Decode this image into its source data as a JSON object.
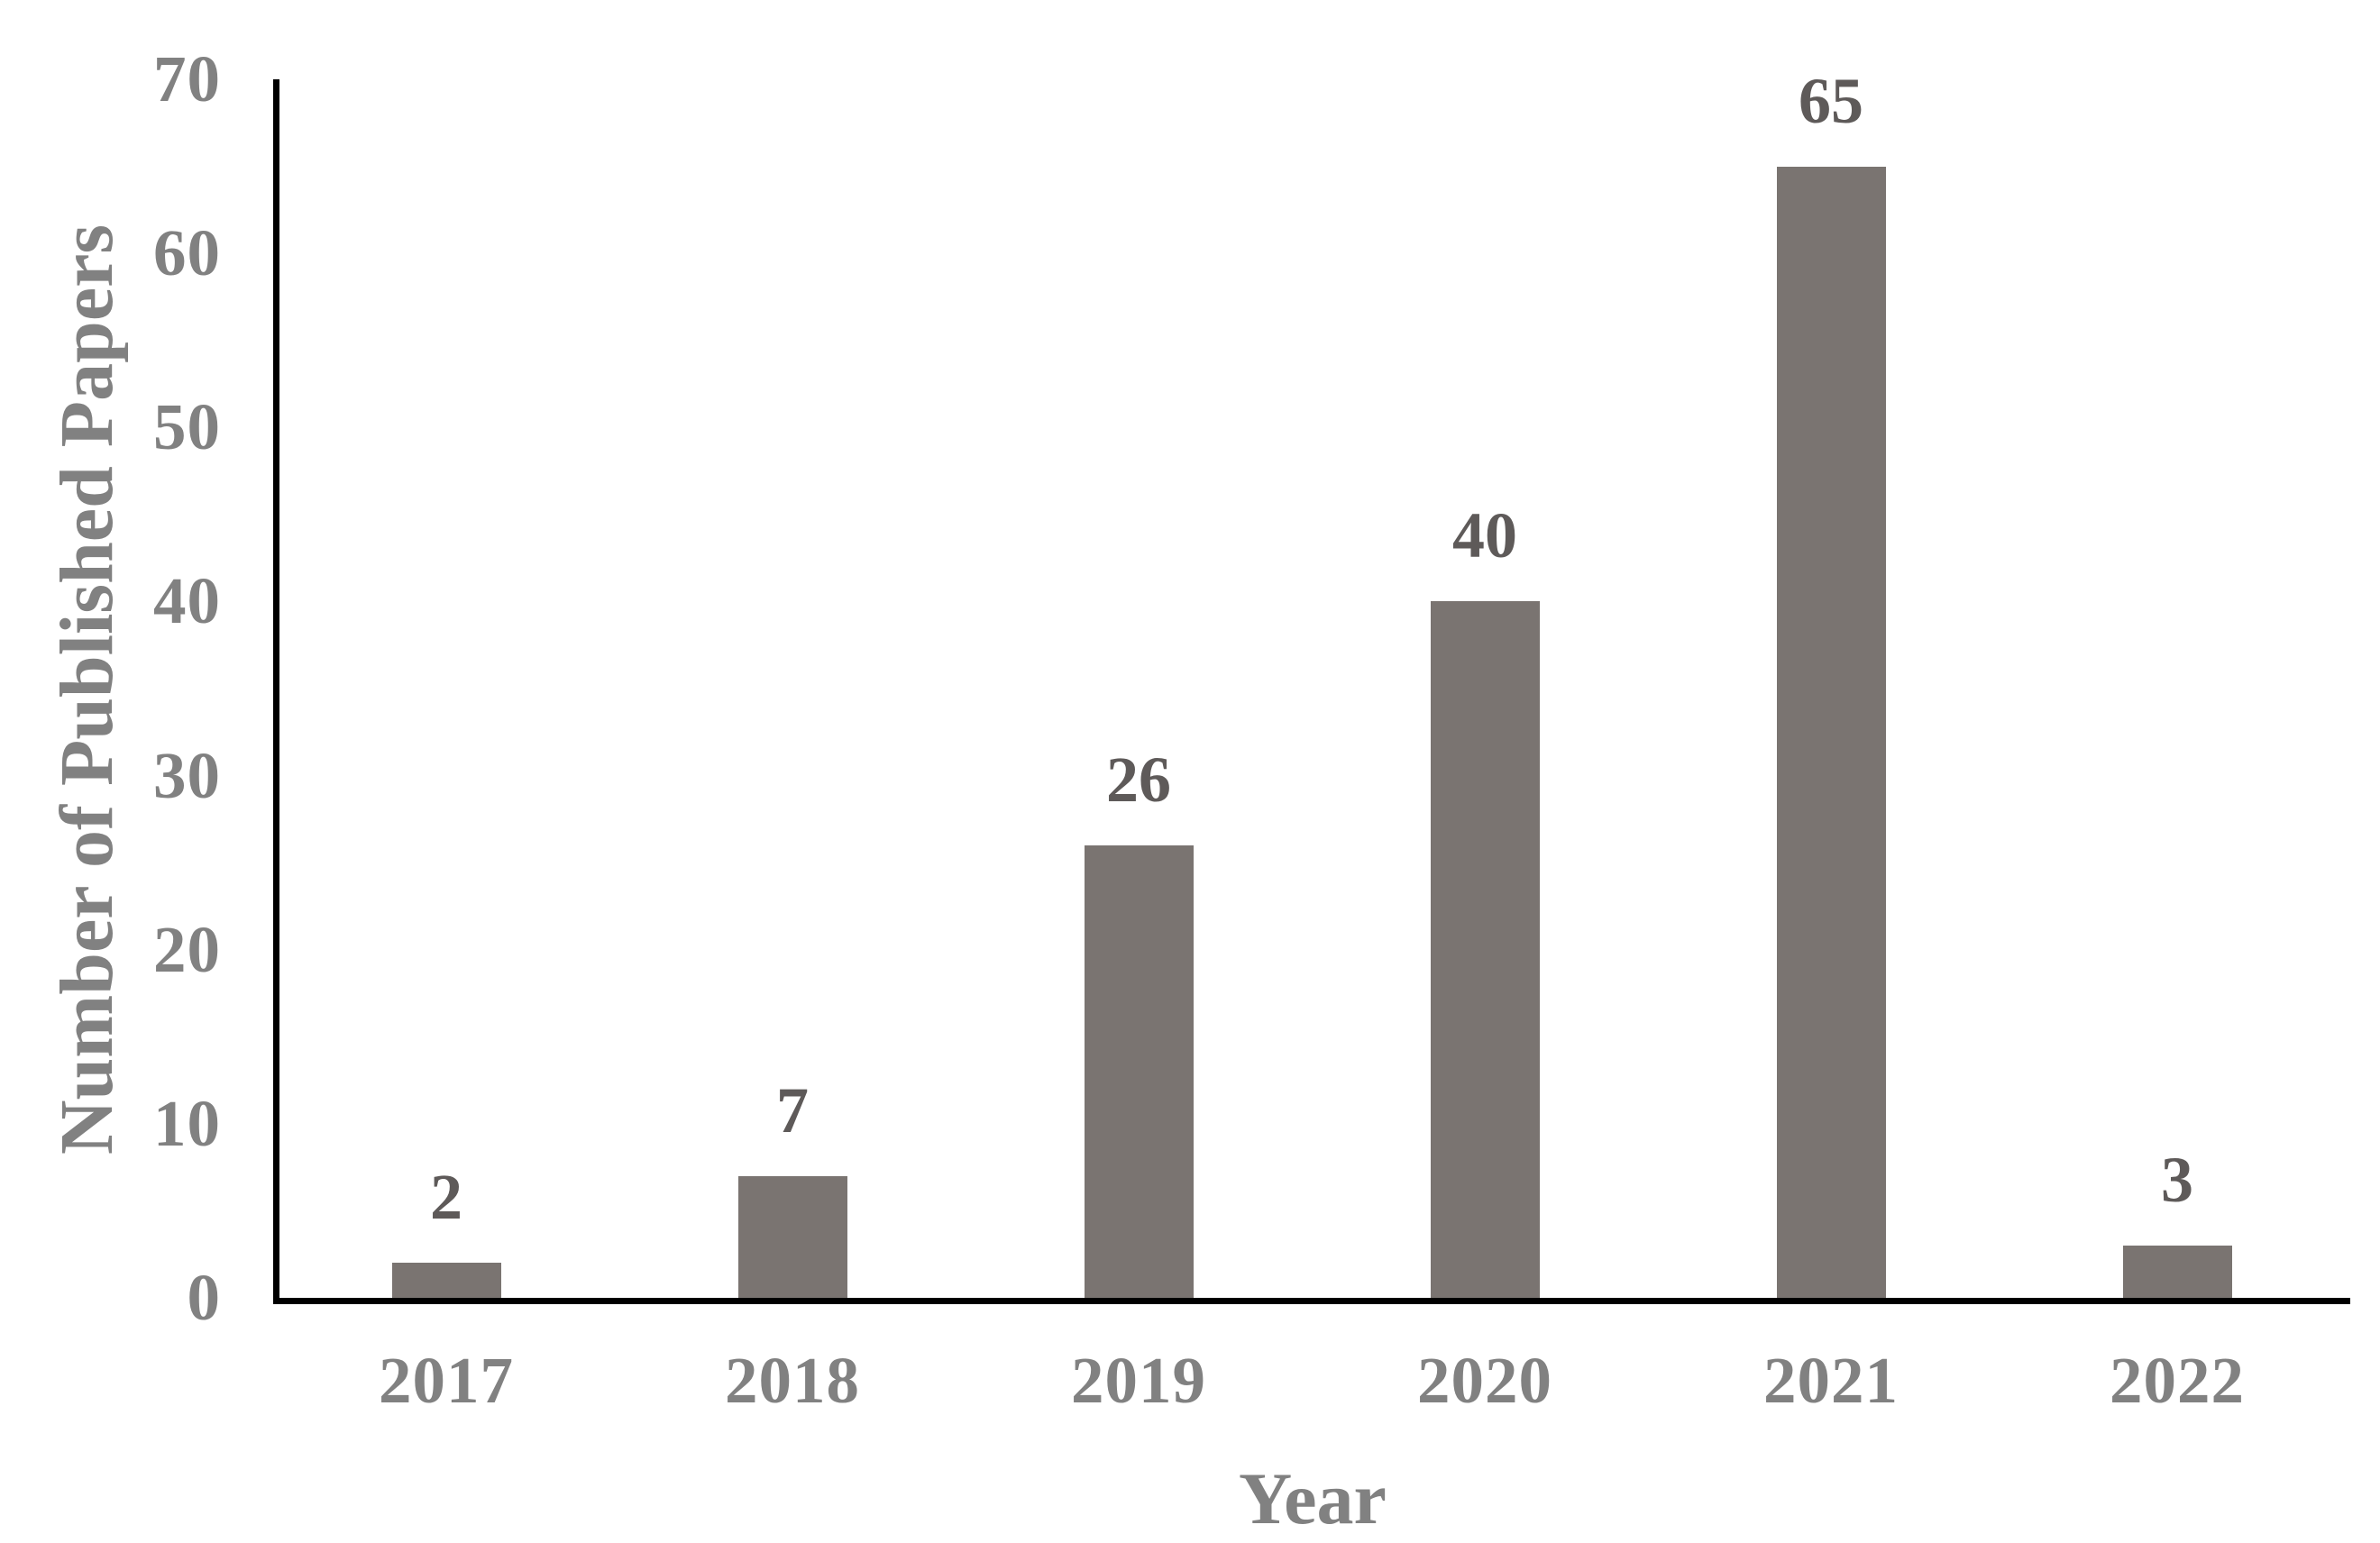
{
  "chart_data": {
    "type": "bar",
    "title": "",
    "categories": [
      "2017",
      "2018",
      "2019",
      "2020",
      "2021",
      "2022"
    ],
    "values": [
      2,
      7,
      26,
      40,
      65,
      3
    ],
    "xlabel": "Year",
    "ylabel": "Number of Published Papers",
    "ylim": [
      0,
      70
    ],
    "yticks": [
      0,
      10,
      20,
      30,
      40,
      50,
      60,
      70
    ],
    "grid": false,
    "legend_position": "none",
    "data_labels_shown": true,
    "colors": {
      "bar": "#7a7471",
      "data_label_text": "#5e5a59",
      "axis_text": "#818181",
      "axis_line": "#000000",
      "background": "#ffffff"
    }
  }
}
